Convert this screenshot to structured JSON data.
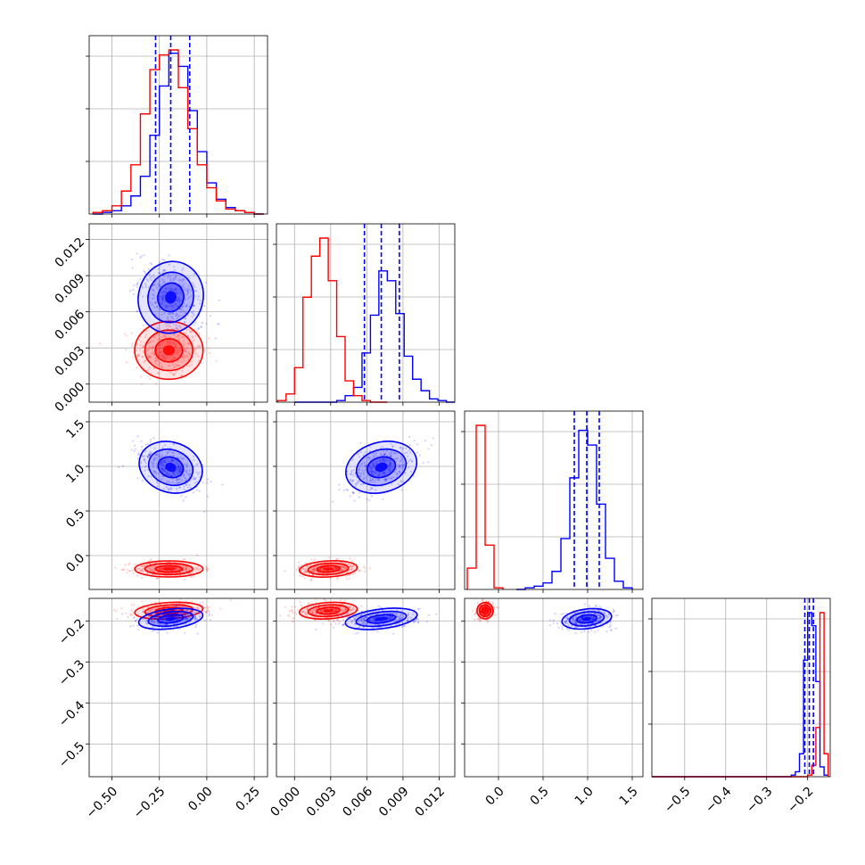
{
  "colors": {
    "series_a": "#0000ff",
    "series_b": "#ff0000",
    "grid": "#b0b0b0"
  },
  "chart_data": {
    "type": "corner",
    "grid": true,
    "parameters": [
      {
        "range": [
          -0.62,
          0.32
        ],
        "ticks": [
          -0.5,
          -0.25,
          0.0,
          0.25
        ],
        "tick_labels": [
          "−0.50",
          "−0.25",
          "0.00",
          "0.25"
        ]
      },
      {
        "range": [
          -0.0015,
          0.0133
        ],
        "ticks": [
          0.0,
          0.003,
          0.006,
          0.009,
          0.012
        ],
        "tick_labels": [
          "0.000",
          "0.003",
          "0.006",
          "0.009",
          "0.012"
        ]
      },
      {
        "range": [
          -0.38,
          1.62
        ],
        "ticks": [
          0.0,
          0.5,
          1.0,
          1.5
        ],
        "tick_labels": [
          "0.0",
          "0.5",
          "1.0",
          "1.5"
        ]
      },
      {
        "range": [
          -0.58,
          -0.145
        ],
        "ticks": [
          -0.5,
          -0.4,
          -0.3,
          -0.2
        ],
        "tick_labels": [
          "−0.5",
          "−0.4",
          "−0.3",
          "−0.2"
        ]
      }
    ],
    "series": [
      {
        "color": "#0000ff",
        "mean": [
          -0.19,
          0.0072,
          0.99,
          -0.195
        ],
        "sd": [
          0.085,
          0.0015,
          0.14,
          0.012
        ],
        "corr": [
          0,
          -0.45,
          -0.55,
          0
        ],
        "quantiles": [
          [
            -0.27,
            -0.19,
            -0.09
          ],
          [
            0.0058,
            0.0072,
            0.0087
          ],
          [
            0.85,
            0.99,
            1.13
          ],
          [
            -0.207,
            -0.196,
            -0.186
          ]
        ],
        "histograms": [
          {
            "bins": [
              -0.6,
              -0.55,
              -0.5,
              -0.45,
              -0.4,
              -0.35,
              -0.3,
              -0.25,
              -0.2,
              -0.15,
              -0.1,
              -0.05,
              0.0,
              0.05,
              0.1,
              0.15,
              0.2,
              0.25,
              0.3
            ],
            "counts": [
              0,
              1,
              2,
              5,
              11,
              23,
              48,
              78,
              98,
              90,
              63,
              38,
              19,
              9,
              4,
              2,
              1,
              0
            ]
          },
          {
            "bins": [
              0.0,
              0.0007,
              0.0014,
              0.0021,
              0.0028,
              0.0035,
              0.0042,
              0.0049,
              0.0056,
              0.0063,
              0.007,
              0.0077,
              0.0084,
              0.0091,
              0.0098,
              0.0105,
              0.0112,
              0.0119,
              0.0126,
              0.0133
            ],
            "counts": [
              0,
              0,
              0,
              0,
              0,
              1,
              4,
              9,
              30,
              53,
              80,
              74,
              54,
              28,
              14,
              7,
              2,
              1,
              0
            ]
          },
          {
            "bins": [
              0.2,
              0.3,
              0.4,
              0.5,
              0.6,
              0.7,
              0.8,
              0.9,
              1.0,
              1.1,
              1.2,
              1.3,
              1.4,
              1.5
            ],
            "counts": [
              0,
              1,
              2,
              4,
              11,
              31,
              68,
              97,
              88,
              52,
              19,
              5,
              1
            ]
          },
          {
            "bins": [
              -0.6,
              -0.55,
              -0.5,
              -0.45,
              -0.4,
              -0.35,
              -0.3,
              -0.25,
              -0.24,
              -0.23,
              -0.22,
              -0.21,
              -0.2,
              -0.19,
              -0.18,
              -0.17,
              -0.16,
              -0.15
            ],
            "counts": [
              0,
              0,
              0,
              0,
              0,
              0,
              0,
              0,
              1,
              3,
              14,
              71,
              100,
              92,
              58,
              6,
              1
            ]
          }
        ]
      },
      {
        "color": "#ff0000",
        "mean": [
          -0.2,
          0.0028,
          -0.15,
          -0.175
        ],
        "sd": [
          0.09,
          0.0012,
          0.045,
          0.01
        ],
        "corr": [
          0,
          0,
          0,
          0
        ],
        "quantiles": [],
        "histograms": [
          {
            "bins": [
              -0.6,
              -0.55,
              -0.5,
              -0.45,
              -0.4,
              -0.35,
              -0.3,
              -0.25,
              -0.2,
              -0.15,
              -0.1,
              -0.05,
              0.0,
              0.05,
              0.1,
              0.15,
              0.2,
              0.25,
              0.3
            ],
            "counts": [
              1,
              2,
              5,
              14,
              30,
              61,
              88,
              97,
              100,
              77,
              52,
              30,
              16,
              8,
              3,
              2,
              1,
              0
            ]
          },
          {
            "bins": [
              -0.0014,
              -0.0007,
              0.0,
              0.0007,
              0.0014,
              0.0021,
              0.0028,
              0.0035,
              0.0042,
              0.0049,
              0.0056,
              0.0063,
              0.007,
              0.0077
            ],
            "counts": [
              1,
              5,
              21,
              64,
              89,
              100,
              74,
              40,
              13,
              4,
              1,
              0,
              0
            ]
          },
          {
            "bins": [
              -0.35,
              -0.25,
              -0.15,
              -0.05,
              0.05
            ],
            "counts": [
              13,
              100,
              27,
              1
            ]
          },
          {
            "bins": [
              -0.6,
              -0.25,
              -0.2,
              -0.19,
              -0.18,
              -0.17,
              -0.16,
              -0.15
            ],
            "counts": [
              0,
              0,
              1,
              7,
              30,
              100,
              14
            ]
          }
        ]
      }
    ]
  }
}
